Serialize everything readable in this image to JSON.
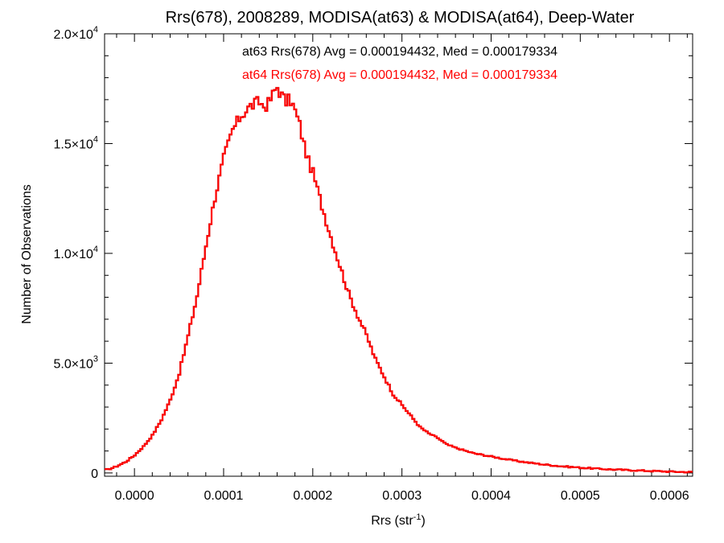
{
  "chart_data": {
    "type": "histogram",
    "title": "Rrs(678), 2008289, MODISA(at63) & MODISA(at64), Deep-Water",
    "xlabel": "Rrs (str",
    "xlabel_sup": "-1",
    "xlabel_close": ")",
    "ylabel": "Number of Observations",
    "xlim": [
      -3.35e-05,
      0.000626
    ],
    "ylim": [
      -150,
      20000
    ],
    "x_ticks": [
      {
        "v": 0.0,
        "label": "0.0000"
      },
      {
        "v": 0.0001,
        "label": "0.0001"
      },
      {
        "v": 0.0002,
        "label": "0.0002"
      },
      {
        "v": 0.0003,
        "label": "0.0003"
      },
      {
        "v": 0.0004,
        "label": "0.0004"
      },
      {
        "v": 0.0005,
        "label": "0.0005"
      },
      {
        "v": 0.0006,
        "label": "0.0006"
      }
    ],
    "y_ticks": [
      {
        "v": 0,
        "base": "0",
        "exp": ""
      },
      {
        "v": 5000,
        "base": "5.0×10",
        "exp": "3"
      },
      {
        "v": 10000,
        "base": "1.0×10",
        "exp": "4"
      },
      {
        "v": 15000,
        "base": "1.5×10",
        "exp": "4"
      },
      {
        "v": 20000,
        "base": "2.0×10",
        "exp": "4"
      }
    ],
    "annotations": [
      {
        "text": "at63 Rrs(678) Avg = 0.000194432, Med = 0.000179334",
        "color": "#000000"
      },
      {
        "text": "at64 Rrs(678) Avg = 0.000194432, Med = 0.000179334",
        "color": "#ff0000"
      }
    ],
    "bin_width": 2.5e-06,
    "series": [
      {
        "name": "at63",
        "color": "#000000"
      },
      {
        "name": "at64",
        "color": "#ff0000"
      }
    ],
    "x": [
      -3e-05,
      -2e-05,
      -1e-05,
      0.0,
      1e-05,
      2e-05,
      3e-05,
      4e-05,
      5e-05,
      6e-05,
      7e-05,
      8e-05,
      9e-05,
      0.0001,
      0.00011,
      0.00012,
      0.00013,
      0.00014,
      0.000145,
      0.00015,
      0.000155,
      0.00016,
      0.000165,
      0.00017,
      0.000175,
      0.00018,
      0.000185,
      0.00019,
      0.000195,
      0.0002,
      0.00021,
      0.00022,
      0.00023,
      0.00024,
      0.00025,
      0.00026,
      0.00027,
      0.00028,
      0.00029,
      0.0003,
      0.00031,
      0.00032,
      0.00033,
      0.00034,
      0.00035,
      0.00036,
      0.00038,
      0.0004,
      0.00042,
      0.00044,
      0.00046,
      0.00048,
      0.0005,
      0.00052,
      0.00054,
      0.00056,
      0.00058,
      0.0006,
      0.00062
    ],
    "y": [
      150,
      300,
      500,
      800,
      1200,
      1700,
      2400,
      3300,
      4500,
      6200,
      8000,
      10300,
      12500,
      14300,
      15600,
      16300,
      16700,
      16900,
      16700,
      16800,
      17200,
      17600,
      17200,
      16900,
      17000,
      16500,
      15900,
      15000,
      14200,
      13700,
      12200,
      10800,
      9500,
      8200,
      7200,
      6300,
      5200,
      4400,
      3600,
      3100,
      2600,
      2100,
      1800,
      1600,
      1300,
      1150,
      900,
      750,
      600,
      480,
      380,
      300,
      240,
      190,
      150,
      120,
      90,
      60,
      40
    ]
  }
}
